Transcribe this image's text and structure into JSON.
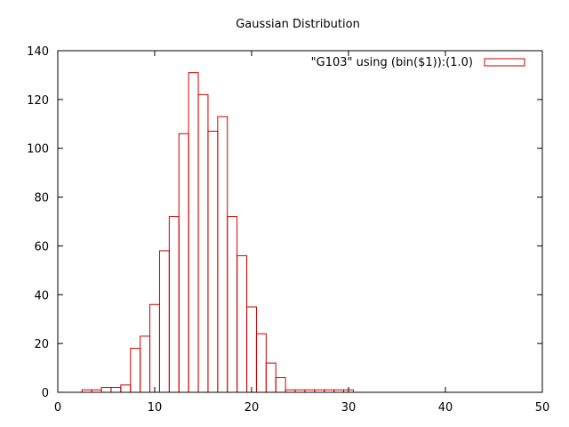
{
  "chart_data": {
    "type": "bar",
    "title": "Gaussian Distribution",
    "xlabel": "",
    "ylabel": "",
    "xlim": [
      0,
      50
    ],
    "ylim": [
      0,
      140
    ],
    "x_ticks": [
      0,
      10,
      20,
      30,
      40,
      50
    ],
    "y_ticks": [
      0,
      20,
      40,
      60,
      80,
      100,
      120,
      140
    ],
    "grid": false,
    "legend_position": "top-right",
    "bar_color": "#cc0000",
    "bin_width": 1,
    "series": [
      {
        "name": "\"G103\" using (bin($1)):(1.0)",
        "x": [
          3,
          4,
          5,
          6,
          7,
          8,
          9,
          10,
          11,
          12,
          13,
          14,
          15,
          16,
          17,
          18,
          19,
          20,
          21,
          22,
          23,
          24,
          25,
          26,
          27,
          28,
          29,
          30
        ],
        "values": [
          1,
          1,
          2,
          2,
          3,
          18,
          23,
          36,
          58,
          72,
          106,
          131,
          122,
          107,
          113,
          72,
          56,
          35,
          24,
          12,
          6,
          1,
          1,
          1,
          1,
          1,
          1,
          1
        ]
      }
    ]
  }
}
